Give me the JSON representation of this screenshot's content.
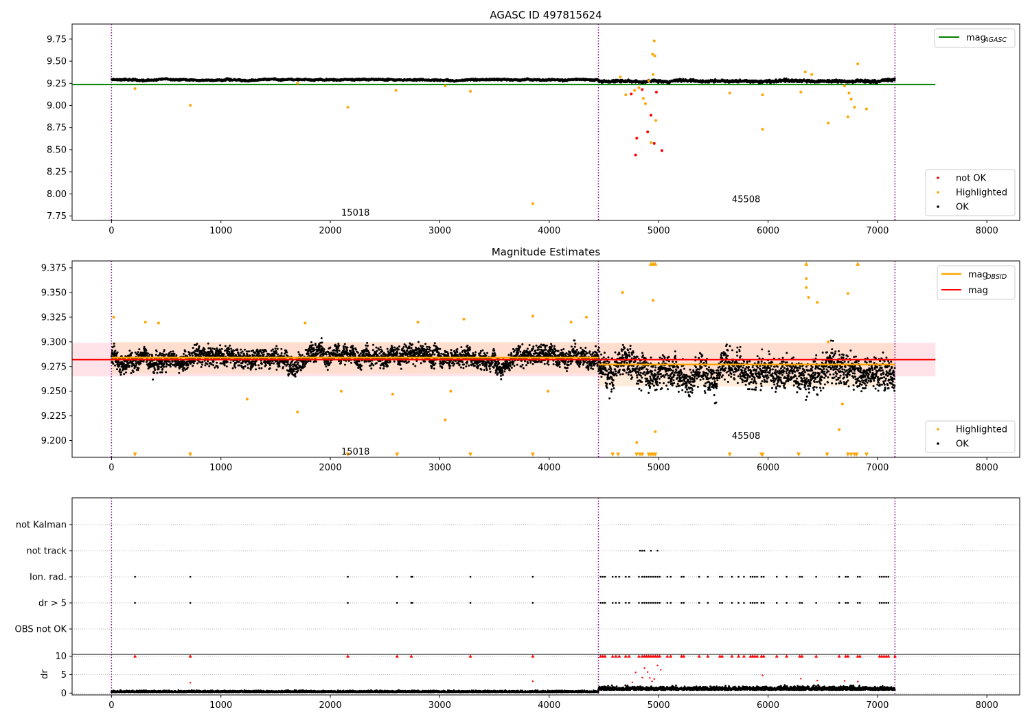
{
  "colors": {
    "ok": "#000000",
    "highlighted": "#ffa500",
    "not_ok": "#ff0000",
    "agasc": "#008000",
    "mag": "#ff0000",
    "obsid": "#ffa500",
    "obsline": "#800080",
    "band_mag": "#ffc0cb",
    "band_obsid": "#ffdab9"
  },
  "chart_data": [
    {
      "id": "top",
      "type": "scatter",
      "title": "AGASC ID 497815624",
      "xlabel": "",
      "ylabel": "",
      "xlim": [
        -360,
        8300
      ],
      "ylim": [
        7.7,
        9.92
      ],
      "xticks": [
        0,
        1000,
        2000,
        3000,
        4000,
        5000,
        6000,
        7000,
        8000
      ],
      "yticks": [
        7.75,
        8.0,
        8.25,
        8.5,
        8.75,
        9.0,
        9.25,
        9.5,
        9.75
      ],
      "ytick_labels": [
        "7.75",
        "8.00",
        "8.25",
        "8.50",
        "8.75",
        "9.00",
        "9.25",
        "9.50",
        "9.75"
      ],
      "obs_lines": [
        0,
        4450,
        7160
      ],
      "obs_labels": [
        {
          "text": "15018",
          "x": 2230,
          "y": 7.79
        },
        {
          "text": "45508",
          "x": 5800,
          "y": 7.94
        }
      ],
      "hline": {
        "y": 9.236,
        "x0": -360,
        "x1": 7530,
        "series": "mag_AGASC"
      },
      "legend_top": {
        "position": "upper-right",
        "entries": [
          {
            "label": "mag",
            "sub": "AGASC"
          }
        ]
      },
      "legend_bottom": {
        "position": "lower-right",
        "entries": [
          {
            "label": "not OK",
            "color": "not_ok"
          },
          {
            "label": "Highlighted",
            "color": "highlighted"
          },
          {
            "label": "OK",
            "color": "ok"
          }
        ]
      },
      "series": [
        {
          "name": "OK",
          "segments": [
            {
              "x": [
                0,
                4450
              ],
              "mean": 9.29,
              "noise": 0.012
            },
            {
              "x": [
                4450,
                7160
              ],
              "mean": 9.28,
              "noise": 0.018
            }
          ]
        },
        {
          "name": "Highlighted",
          "points": [
            [
              215,
              9.19
            ],
            [
              720,
              9.0
            ],
            [
              1700,
              9.25
            ],
            [
              2160,
              8.98
            ],
            [
              2600,
              9.17
            ],
            [
              3050,
              9.22
            ],
            [
              3280,
              9.16
            ],
            [
              3850,
              7.89
            ],
            [
              4650,
              9.32
            ],
            [
              4700,
              9.12
            ],
            [
              4780,
              9.17
            ],
            [
              4820,
              9.2
            ],
            [
              4860,
              9.08
            ],
            [
              4880,
              9.02
            ],
            [
              4910,
              9.28
            ],
            [
              4930,
              8.58
            ],
            [
              4945,
              9.58
            ],
            [
              4950,
              9.35
            ],
            [
              4960,
              9.73
            ],
            [
              4965,
              9.56
            ],
            [
              4975,
              8.83
            ],
            [
              5650,
              9.14
            ],
            [
              5950,
              9.12
            ],
            [
              5950,
              8.73
            ],
            [
              6300,
              9.15
            ],
            [
              6340,
              9.38
            ],
            [
              6400,
              9.35
            ],
            [
              6550,
              8.8
            ],
            [
              6700,
              9.22
            ],
            [
              6730,
              8.87
            ],
            [
              6740,
              9.14
            ],
            [
              6760,
              9.07
            ],
            [
              6790,
              8.98
            ],
            [
              6820,
              9.47
            ],
            [
              6900,
              8.96
            ]
          ]
        },
        {
          "name": "not OK",
          "points": [
            [
              4750,
              9.13
            ],
            [
              4790,
              8.44
            ],
            [
              4800,
              8.63
            ],
            [
              4850,
              9.18
            ],
            [
              4900,
              8.7
            ],
            [
              4930,
              8.89
            ],
            [
              4960,
              8.57
            ],
            [
              4980,
              9.15
            ],
            [
              5030,
              8.49
            ]
          ]
        }
      ]
    },
    {
      "id": "middle",
      "type": "scatter",
      "title": "Magnitude Estimates",
      "xlabel": "",
      "ylabel": "",
      "xlim": [
        -360,
        8300
      ],
      "ylim": [
        9.183,
        9.382
      ],
      "xticks": [
        0,
        1000,
        2000,
        3000,
        4000,
        5000,
        6000,
        7000,
        8000
      ],
      "yticks": [
        9.2,
        9.225,
        9.25,
        9.275,
        9.3,
        9.325,
        9.35,
        9.375
      ],
      "ytick_labels": [
        "9.200",
        "9.225",
        "9.250",
        "9.275",
        "9.300",
        "9.325",
        "9.350",
        "9.375"
      ],
      "obs_lines": [
        0,
        4450,
        7160
      ],
      "obs_labels": [
        {
          "text": "15018",
          "x": 2230,
          "y": 9.189
        },
        {
          "text": "45508",
          "x": 5800,
          "y": 9.205
        }
      ],
      "mag": {
        "value": 9.282,
        "band": [
          9.265,
          9.299
        ],
        "x0": -360,
        "x1": 7530
      },
      "obsid_mag": [
        {
          "x": [
            0,
            4450
          ],
          "value": 9.284,
          "band": [
            9.268,
            9.3
          ]
        },
        {
          "x": [
            4450,
            7160
          ],
          "value": 9.277,
          "band": [
            9.255,
            9.299
          ]
        }
      ],
      "legend_top": {
        "position": "upper-right",
        "entries": [
          {
            "label": "mag",
            "sub": "OBSID"
          },
          {
            "label": "mag"
          }
        ]
      },
      "legend_bottom": {
        "position": "lower-right",
        "entries": [
          {
            "label": "Highlighted",
            "color": "highlighted"
          },
          {
            "label": "OK",
            "color": "ok"
          }
        ]
      },
      "series": [
        {
          "name": "OK",
          "segments": [
            {
              "x": [
                0,
                4450
              ],
              "mean": 9.285,
              "noise": 0.012
            },
            {
              "x": [
                4450,
                7160
              ],
              "mean": 9.275,
              "noise": 0.02
            }
          ]
        },
        {
          "name": "Highlighted",
          "points": [
            [
              20,
              9.325
            ],
            [
              310,
              9.32
            ],
            [
              430,
              9.319
            ],
            [
              1240,
              9.242
            ],
            [
              1700,
              9.229
            ],
            [
              1770,
              9.319
            ],
            [
              2100,
              9.25
            ],
            [
              2570,
              9.247
            ],
            [
              2800,
              9.32
            ],
            [
              3050,
              9.221
            ],
            [
              3100,
              9.25
            ],
            [
              3220,
              9.323
            ],
            [
              3850,
              9.326
            ],
            [
              3990,
              9.25
            ],
            [
              4200,
              9.32
            ],
            [
              4340,
              9.325
            ],
            [
              4670,
              9.35
            ],
            [
              4800,
              9.198
            ],
            [
              4950,
              9.342
            ],
            [
              4970,
              9.209
            ],
            [
              6350,
              9.364
            ],
            [
              6350,
              9.355
            ],
            [
              6370,
              9.345
            ],
            [
              6450,
              9.34
            ],
            [
              6550,
              9.3
            ],
            [
              6650,
              9.211
            ],
            [
              6680,
              9.237
            ],
            [
              6730,
              9.349
            ]
          ]
        },
        {
          "name": "Highlighted (clipped high)",
          "x": [
            4930,
            4950,
            4970,
            6350,
            6820
          ]
        },
        {
          "name": "Highlighted (clipped low)",
          "x": [
            215,
            720,
            2160,
            2610,
            3280,
            3850,
            4580,
            4630,
            4800,
            4830,
            4850,
            4910,
            4930,
            4950,
            4970,
            5650,
            5940,
            5950,
            6280,
            6540,
            6730,
            6760,
            6790,
            6810,
            6900
          ]
        }
      ]
    },
    {
      "id": "flags",
      "type": "scatter",
      "title": "",
      "xlabel": "",
      "ylabel": "",
      "xlim": [
        -360,
        8300
      ],
      "categories": [
        "OBS not OK",
        "dr > 5",
        "Ion. rad.",
        "not track",
        "not Kalman"
      ],
      "obs_lines": [
        0,
        4450,
        7160
      ],
      "series": [
        {
          "name": "not track",
          "x": [
            4830,
            4850,
            4870,
            4930,
            4990
          ]
        },
        {
          "name": "Ion. rad.",
          "x": [
            215,
            720,
            2160,
            2610,
            2740,
            2750,
            3280,
            3850,
            4470,
            4490,
            4510,
            4580,
            4610,
            4640,
            4700,
            4730,
            4820,
            4850,
            4870,
            4890,
            4910,
            4930,
            4950,
            4970,
            4990,
            5010,
            5080,
            5110,
            5210,
            5230,
            5370,
            5450,
            5560,
            5580,
            5670,
            5730,
            5780,
            5840,
            5860,
            5880,
            5900,
            5940,
            5960,
            6080,
            6170,
            6290,
            6310,
            6440,
            6650,
            6710,
            6730,
            6820,
            6840,
            7020,
            7040,
            7060,
            7080,
            7100
          ]
        },
        {
          "name": "dr > 5",
          "x": [
            215,
            720,
            2160,
            2610,
            2740,
            2750,
            3280,
            3850,
            4470,
            4490,
            4510,
            4580,
            4610,
            4640,
            4700,
            4730,
            4820,
            4850,
            4870,
            4890,
            4910,
            4930,
            4950,
            4970,
            4990,
            5010,
            5080,
            5110,
            5210,
            5230,
            5370,
            5450,
            5560,
            5580,
            5670,
            5730,
            5780,
            5840,
            5860,
            5880,
            5900,
            5940,
            5960,
            6080,
            6170,
            6290,
            6310,
            6440,
            6650,
            6710,
            6730,
            6820,
            6840,
            7020,
            7040,
            7060,
            7080,
            7100
          ]
        }
      ]
    },
    {
      "id": "dr",
      "type": "scatter",
      "title": "",
      "xlabel": "",
      "ylabel": "dr",
      "xlim": [
        -360,
        8300
      ],
      "ylim": [
        -0.5,
        10.5
      ],
      "xticks": [
        0,
        1000,
        2000,
        3000,
        4000,
        5000,
        6000,
        7000,
        8000
      ],
      "yticks": [
        0,
        5,
        10
      ],
      "ytick_labels": [
        "0",
        "5",
        "10"
      ],
      "obs_lines": [
        0,
        4450,
        7160
      ],
      "series": [
        {
          "name": "OK",
          "segments": [
            {
              "x": [
                0,
                4450
              ],
              "mean": 0.35,
              "noise": 0.2
            },
            {
              "x": [
                4450,
                7160
              ],
              "mean": 1.1,
              "noise": 0.45
            }
          ]
        },
        {
          "name": "outliers",
          "points": [
            [
              720,
              2.8
            ],
            [
              3850,
              3.2
            ],
            [
              4760,
              2.9
            ],
            [
              4790,
              5.6
            ],
            [
              4850,
              4.2
            ],
            [
              4870,
              6.8
            ],
            [
              4900,
              5.7
            ],
            [
              4920,
              4.1
            ],
            [
              4940,
              3.2
            ],
            [
              4960,
              3.8
            ],
            [
              4990,
              7.5
            ],
            [
              5020,
              6.3
            ],
            [
              5950,
              4.8
            ],
            [
              6300,
              3.9
            ],
            [
              6450,
              3.4
            ],
            [
              6700,
              3.3
            ],
            [
              6820,
              3.1
            ]
          ]
        },
        {
          "name": "clipped",
          "x": [
            215,
            720,
            2160,
            2610,
            2740,
            3280,
            3850,
            4470,
            4490,
            4510,
            4580,
            4610,
            4640,
            4700,
            4730,
            4820,
            4850,
            4870,
            4890,
            4910,
            4930,
            4950,
            4970,
            4990,
            5010,
            5080,
            5110,
            5210,
            5230,
            5370,
            5450,
            5560,
            5580,
            5670,
            5730,
            5780,
            5840,
            5860,
            5880,
            5900,
            5940,
            5960,
            6080,
            6170,
            6290,
            6310,
            6440,
            6650,
            6710,
            6730,
            6820,
            6840,
            7020,
            7040,
            7060,
            7080,
            7100,
            7160
          ]
        }
      ]
    }
  ]
}
